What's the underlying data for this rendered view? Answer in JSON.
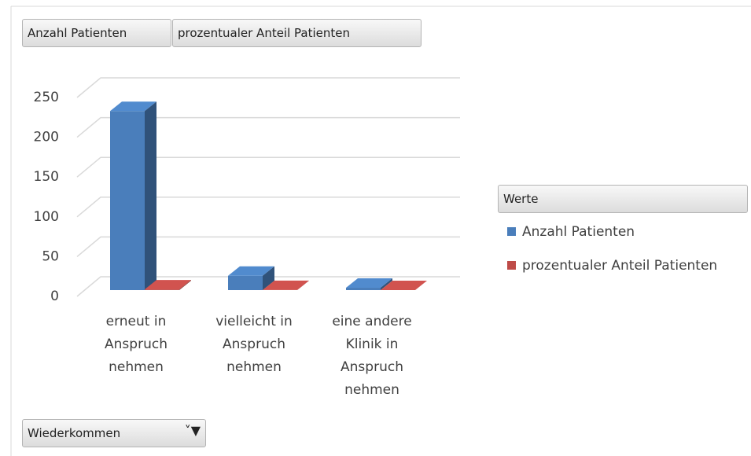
{
  "chart_data": {
    "type": "bar3d",
    "value_buttons": [
      "Anzahl Patienten",
      "prozentualer Anteil Patienten"
    ],
    "legend_title": "Werte",
    "axis_field": "Wiederkommen",
    "categories": [
      "erneut in Anspruch nehmen",
      "vielleicht in Anspruch nehmen",
      "eine andere Klinik in Anspruch nehmen"
    ],
    "series": [
      {
        "name": "Anzahl Patienten",
        "color": "#4a7ebb",
        "values": [
          225,
          18,
          3
        ]
      },
      {
        "name": "prozentualer Anteil Patienten",
        "color": "#be4b48",
        "values": [
          0.91,
          0.07,
          0.01
        ]
      }
    ],
    "ylim": [
      0,
      250
    ],
    "yticks": [
      0,
      50,
      100,
      150,
      200,
      250
    ],
    "grid": true
  }
}
